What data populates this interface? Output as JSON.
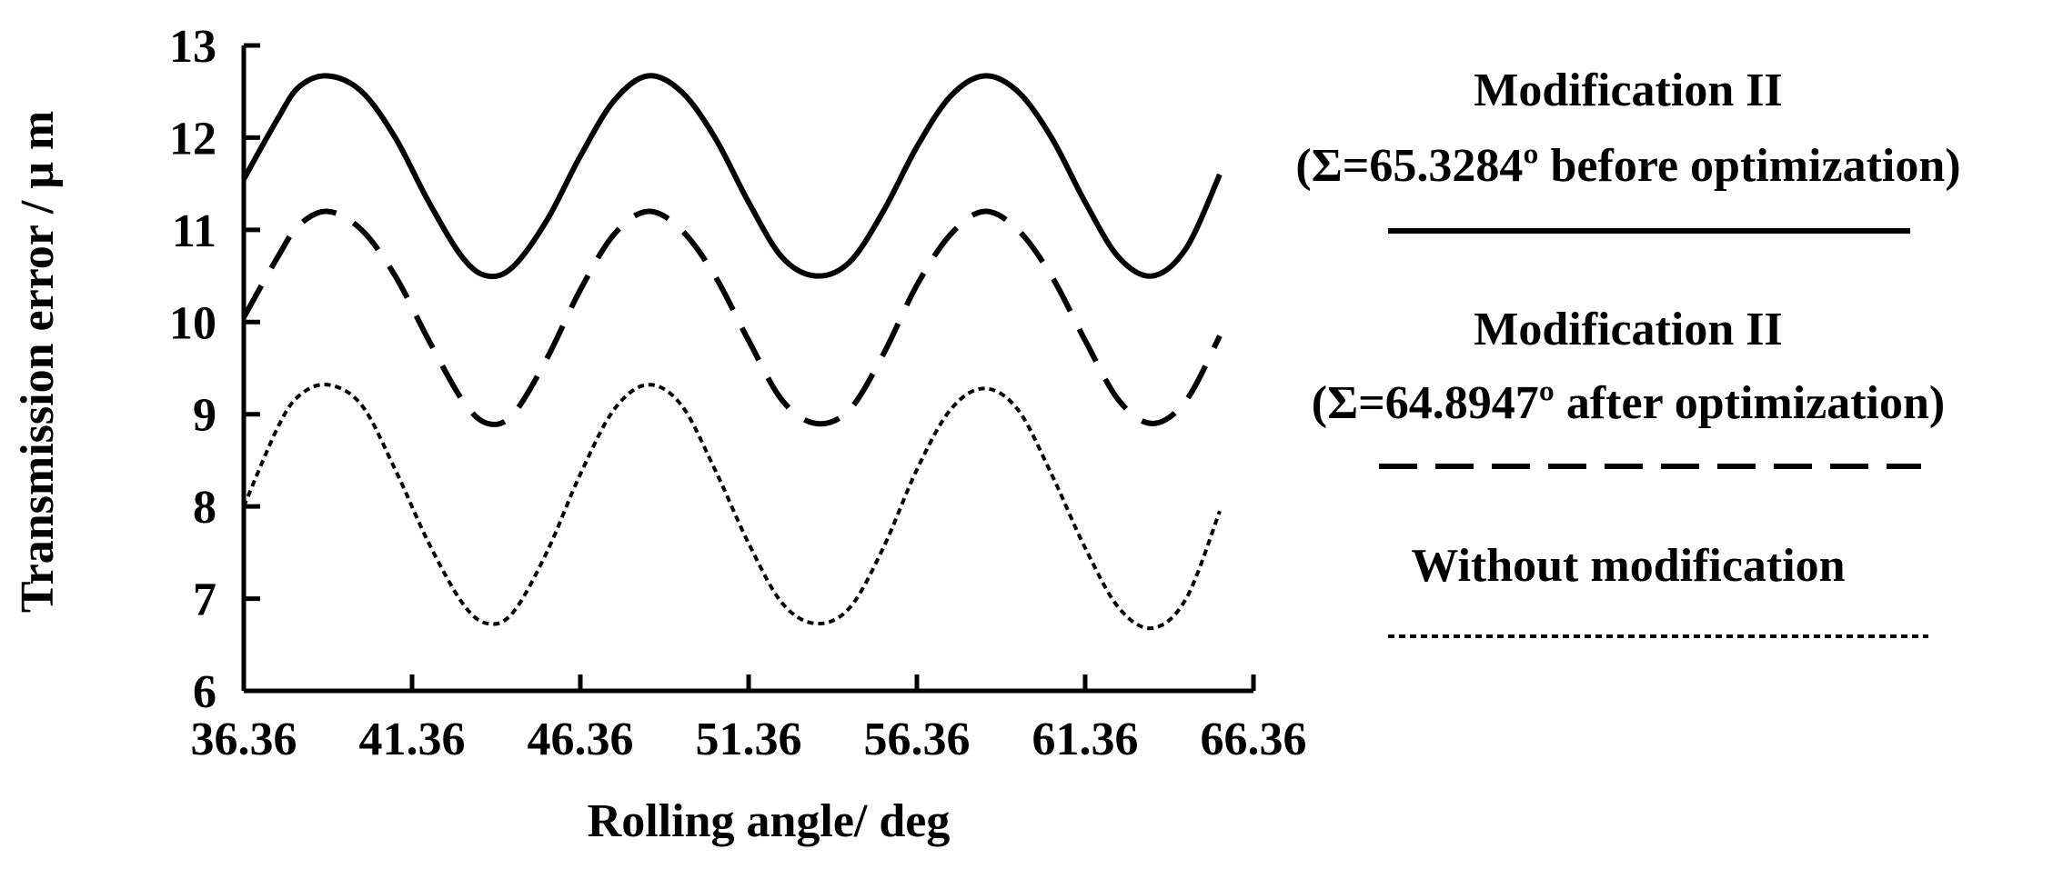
{
  "chart_data": {
    "type": "line",
    "xlabel": "Rolling angle/ deg",
    "ylabel": "Transmission error / μ m",
    "xlim": [
      36.36,
      66.36
    ],
    "ylim": [
      6,
      13
    ],
    "xticks": [
      "36.36",
      "41.36",
      "46.36",
      "51.36",
      "56.36",
      "61.36",
      "66.36"
    ],
    "yticks": [
      "6",
      "7",
      "8",
      "9",
      "10",
      "11",
      "12",
      "13"
    ],
    "grid": false,
    "legend_position": "right",
    "series": [
      {
        "name": "Modification II (Σ=65.3284º before optimization)",
        "legend_line1": "Modification II",
        "legend_line2": "(Σ=65.3284º before optimization)",
        "style": "solid",
        "color": "#000000",
        "x": [
          36.36,
          37.36,
          38.0,
          38.86,
          39.86,
          40.86,
          41.86,
          42.86,
          43.6,
          44.36,
          45.36,
          46.36,
          47.36,
          48.36,
          49.36,
          50.36,
          51.36,
          52.36,
          53.36,
          54.36,
          55.36,
          56.36,
          57.36,
          58.36,
          59.36,
          60.36,
          61.36,
          62.36,
          63.36,
          64.36,
          65.36
        ],
        "y": [
          11.55,
          12.2,
          12.55,
          12.67,
          12.5,
          12.0,
          11.3,
          10.7,
          10.5,
          10.6,
          11.1,
          11.8,
          12.4,
          12.67,
          12.5,
          12.0,
          11.3,
          10.7,
          10.5,
          10.65,
          11.2,
          11.9,
          12.45,
          12.67,
          12.5,
          12.0,
          11.3,
          10.7,
          10.5,
          10.8,
          11.6
        ]
      },
      {
        "name": "Modification II (Σ=64.8947º after optimization)",
        "legend_line1": "Modification II",
        "legend_line2": "(Σ=64.8947º after optimization)",
        "style": "dashed",
        "color": "#000000",
        "x": [
          36.36,
          37.36,
          38.0,
          38.86,
          39.86,
          40.86,
          41.86,
          42.86,
          43.6,
          44.36,
          45.36,
          46.36,
          47.36,
          48.36,
          49.36,
          50.36,
          51.36,
          52.36,
          53.36,
          54.36,
          55.36,
          56.36,
          57.36,
          58.36,
          59.36,
          60.36,
          61.36,
          62.36,
          63.36,
          64.36,
          65.36
        ],
        "y": [
          10.05,
          10.7,
          11.05,
          11.2,
          11.0,
          10.5,
          9.8,
          9.15,
          8.9,
          9.0,
          9.6,
          10.35,
          10.95,
          11.2,
          11.0,
          10.5,
          9.8,
          9.15,
          8.9,
          9.05,
          9.65,
          10.4,
          10.95,
          11.2,
          11.0,
          10.5,
          9.8,
          9.15,
          8.9,
          9.15,
          9.85
        ]
      },
      {
        "name": "Without modification",
        "legend_line1": "Without modification",
        "legend_line2": "",
        "style": "dotted",
        "color": "#000000",
        "x": [
          36.36,
          37.36,
          38.0,
          38.86,
          39.86,
          40.86,
          41.86,
          42.86,
          43.6,
          44.36,
          45.36,
          46.36,
          47.36,
          48.36,
          49.36,
          50.36,
          51.36,
          52.36,
          53.36,
          54.36,
          55.36,
          56.36,
          57.36,
          58.36,
          59.36,
          60.36,
          61.36,
          62.36,
          63.36,
          64.36,
          65.36
        ],
        "y": [
          8.0,
          8.85,
          9.2,
          9.32,
          9.1,
          8.4,
          7.6,
          6.95,
          6.73,
          6.85,
          7.5,
          8.35,
          9.05,
          9.32,
          9.1,
          8.4,
          7.6,
          6.95,
          6.73,
          6.9,
          7.55,
          8.4,
          9.05,
          9.28,
          9.05,
          8.35,
          7.55,
          6.9,
          6.68,
          7.0,
          7.95
        ]
      }
    ]
  }
}
